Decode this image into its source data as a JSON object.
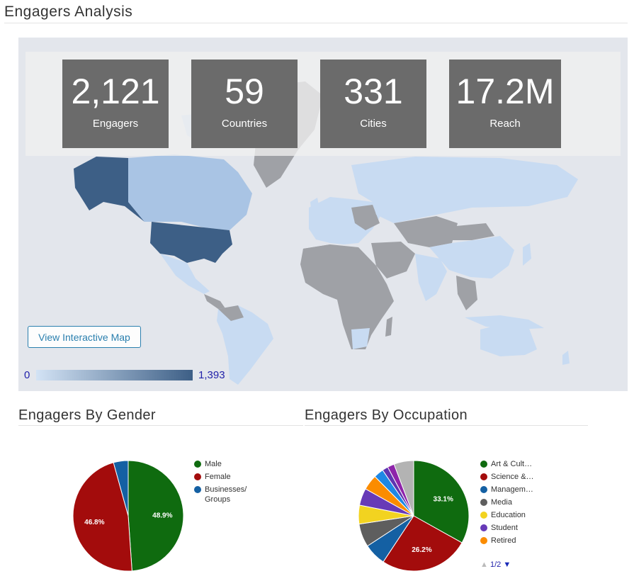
{
  "header": {
    "title": "Engagers Analysis"
  },
  "stats": [
    {
      "value": "2,121",
      "label": "Engagers"
    },
    {
      "value": "59",
      "label": "Countries"
    },
    {
      "value": "331",
      "label": "Cities"
    },
    {
      "value": "17.2M",
      "label": "Reach"
    }
  ],
  "map": {
    "button_label": "View Interactive Map",
    "legend_min": "0",
    "legend_max": "1,393",
    "colors": {
      "none": "#9fa1a6",
      "low": "#c8dbf2",
      "mid": "#a9c4e4",
      "high": "#3d5f86",
      "background": "#e3e6ec"
    }
  },
  "gender": {
    "title": "Engagers By Gender",
    "legend": [
      "Male",
      "Female",
      "Businesses/ Groups"
    ],
    "chart_data": {
      "type": "pie",
      "title": "Engagers By Gender",
      "categories": [
        "Male",
        "Female",
        "Businesses/ Groups"
      ],
      "values": [
        48.9,
        46.8,
        4.3
      ],
      "colors": [
        "#0f6b0f",
        "#a30c0c",
        "#1460a3"
      ],
      "labels": [
        "48.9%",
        "46.8%",
        ""
      ]
    }
  },
  "occupation": {
    "title": "Engagers By Occupation",
    "legend": [
      "Art & Cult…",
      "Science &…",
      "Managem…",
      "Media",
      "Education",
      "Student",
      "Retired"
    ],
    "pager": "1/2",
    "chart_data": {
      "type": "pie",
      "title": "Engagers By Occupation",
      "categories": [
        "Art & Cult…",
        "Science &…",
        "Managem…",
        "Media",
        "Education",
        "Student",
        "Retired",
        "",
        "",
        "",
        ""
      ],
      "values": [
        33.1,
        26.2,
        6.5,
        6.8,
        5.5,
        5.0,
        4.5,
        2.9,
        1.7,
        2.0,
        5.8
      ],
      "colors": [
        "#0f6b0f",
        "#a30c0c",
        "#1460a3",
        "#5e5e5e",
        "#f2d320",
        "#673ab7",
        "#fb8c00",
        "#1e88e5",
        "#5e35b1",
        "#8e24aa",
        "#b3b3b3"
      ],
      "labels": [
        "33.1%",
        "26.2%",
        "",
        "",
        "",
        "",
        "",
        "",
        "",
        "",
        ""
      ]
    }
  }
}
